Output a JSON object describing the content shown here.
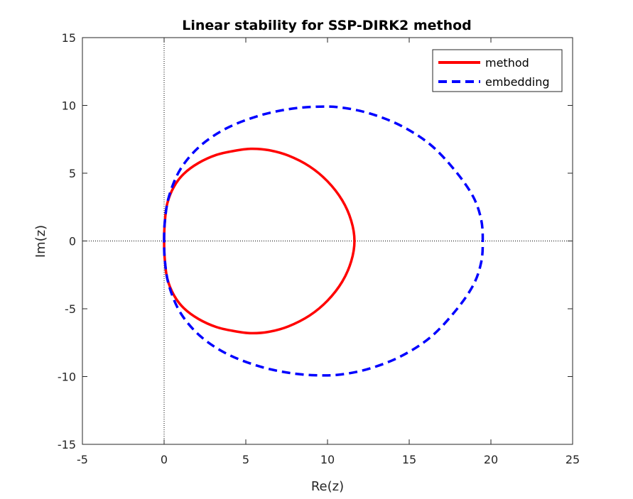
{
  "chart_data": {
    "type": "line",
    "title": "Linear stability for SSP-DIRK2 method",
    "xlabel": "Re(z)",
    "ylabel": "Im(z)",
    "xlim": [
      -5,
      25
    ],
    "ylim": [
      -15,
      15
    ],
    "xticks": [
      -5,
      0,
      5,
      10,
      15,
      20,
      25
    ],
    "yticks": [
      -15,
      -10,
      -5,
      0,
      5,
      10,
      15
    ],
    "xtick_labels": [
      "-5",
      "0",
      "5",
      "10",
      "15",
      "20",
      "25"
    ],
    "ytick_labels": [
      "-15",
      "-10",
      "-5",
      "0",
      "5",
      "10",
      "15"
    ],
    "grid": false,
    "reference_lines": {
      "x": 0,
      "y": 0,
      "style": "dotted"
    },
    "legend_position": "top-right",
    "series": [
      {
        "name": "method",
        "color": "#ff0000",
        "style": "solid",
        "x": [
          0.0,
          0.05,
          0.2,
          0.6,
          1.2,
          2.1,
          3.2,
          4.3,
          5.3,
          6.4,
          7.6,
          8.9,
          10.0,
          10.9,
          11.45,
          11.65,
          11.45,
          10.9,
          10.0,
          8.9,
          7.6,
          6.4,
          5.3,
          4.3,
          3.2,
          2.1,
          1.2,
          0.6,
          0.2,
          0.05,
          0.0
        ],
        "y": [
          0.0,
          1.5,
          2.8,
          4.0,
          4.95,
          5.75,
          6.35,
          6.65,
          6.8,
          6.7,
          6.3,
          5.5,
          4.4,
          3.0,
          1.5,
          0.0,
          -1.5,
          -3.0,
          -4.4,
          -5.5,
          -6.3,
          -6.7,
          -6.8,
          -6.65,
          -6.35,
          -5.75,
          -4.95,
          -4.0,
          -2.8,
          -1.5,
          0.0
        ]
      },
      {
        "name": "embedding",
        "color": "#0000ff",
        "style": "dashed",
        "x": [
          0.0,
          0.05,
          0.3,
          1.0,
          2.2,
          3.8,
          5.7,
          7.5,
          9.2,
          10.8,
          12.6,
          14.5,
          16.3,
          17.8,
          18.9,
          19.4,
          19.5,
          19.4,
          18.9,
          17.8,
          16.3,
          14.5,
          12.6,
          10.8,
          9.2,
          7.5,
          5.7,
          3.8,
          2.2,
          1.0,
          0.3,
          0.05,
          0.0
        ],
        "y": [
          0.0,
          1.5,
          3.3,
          5.3,
          7.0,
          8.3,
          9.2,
          9.7,
          9.9,
          9.85,
          9.4,
          8.5,
          7.1,
          5.2,
          3.3,
          1.6,
          0.0,
          -1.6,
          -3.3,
          -5.2,
          -7.1,
          -8.5,
          -9.4,
          -9.85,
          -9.9,
          -9.7,
          -9.2,
          -8.3,
          -7.0,
          -5.3,
          -3.3,
          -1.5,
          0.0
        ]
      }
    ]
  }
}
